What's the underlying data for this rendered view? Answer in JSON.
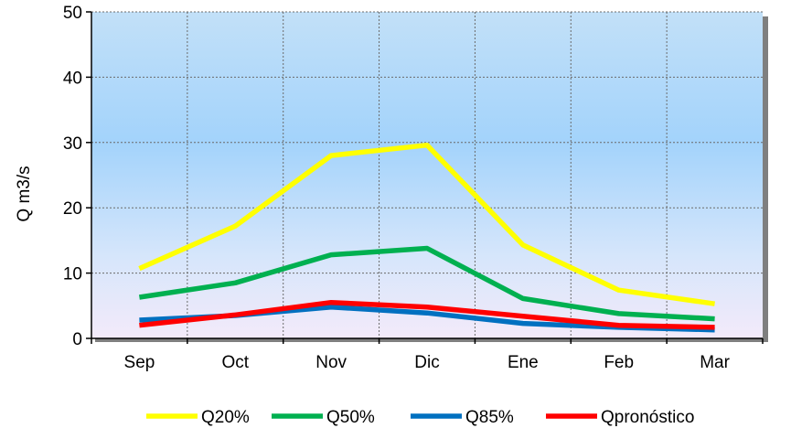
{
  "chart_data": {
    "type": "line",
    "title": "",
    "xlabel": "",
    "ylabel": "Q m3/s",
    "ylim": [
      0,
      50
    ],
    "yticks": [
      0,
      10,
      20,
      30,
      40,
      50
    ],
    "categories": [
      "Sep",
      "Oct",
      "Nov",
      "Dic",
      "Ene",
      "Feb",
      "Mar"
    ],
    "grid": true,
    "legend_position": "bottom",
    "series": [
      {
        "name": "Q20%",
        "color": "#ffff00",
        "values": [
          10.7,
          17.2,
          28.0,
          29.6,
          14.3,
          7.4,
          5.3
        ]
      },
      {
        "name": "Q50%",
        "color": "#00b050",
        "values": [
          6.3,
          8.5,
          12.8,
          13.8,
          6.1,
          3.8,
          3.0
        ]
      },
      {
        "name": "Q85%",
        "color": "#0070c0",
        "values": [
          2.8,
          3.5,
          4.8,
          3.9,
          2.3,
          1.7,
          1.3
        ]
      },
      {
        "name": "Qpronóstico",
        "color": "#ff0000",
        "values": [
          2.0,
          3.6,
          5.5,
          4.8,
          3.4,
          2.0,
          1.7
        ]
      }
    ]
  }
}
